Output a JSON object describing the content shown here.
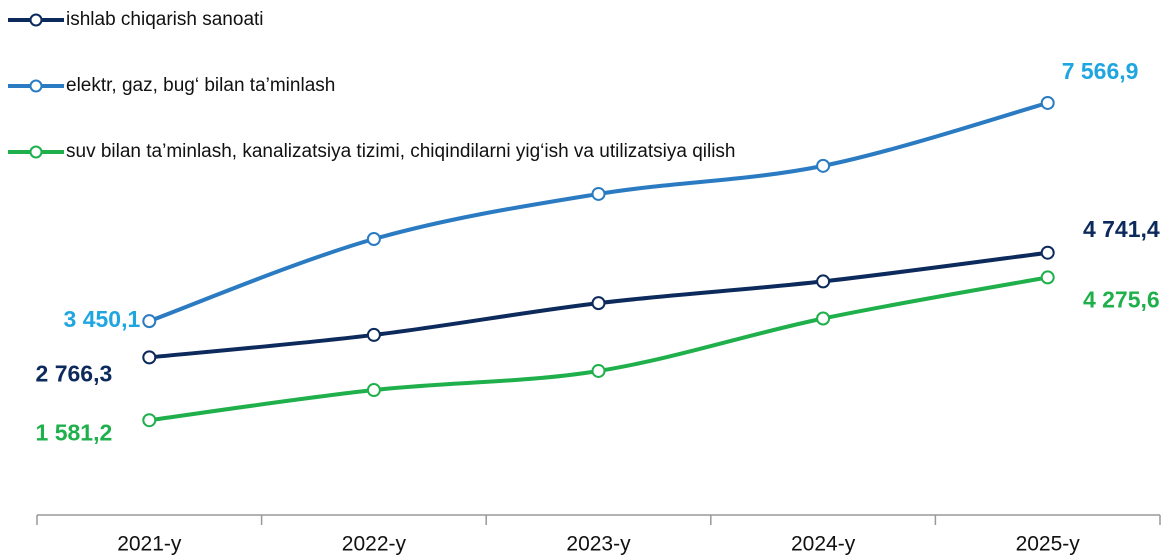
{
  "chart_data": {
    "type": "line",
    "categories": [
      "2021-y",
      "2022-y",
      "2023-y",
      "2024-y",
      "2025-y"
    ],
    "series": [
      {
        "name": "ishlab chiqarish sanoati",
        "color": "#0d2a5c",
        "label_color": "#0d2a5c",
        "values": [
          2766.3,
          3190,
          3790,
          4200,
          4741.4
        ],
        "value_labels": [
          "2 766,3",
          null,
          null,
          null,
          "4 741,4"
        ]
      },
      {
        "name": "elektr, gaz, bug‘ bilan ta’minlash",
        "color": "#2b7bc2",
        "label_color": "#1fa6e0",
        "values": [
          3450.1,
          5000,
          5850,
          6380,
          7566.9
        ],
        "value_labels": [
          "3 450,1",
          null,
          null,
          null,
          "7 566,9"
        ]
      },
      {
        "name": "suv bilan ta’minlash, kanalizatsiya tizimi, chiqindilarni yig‘ish va utilizatsiya qilish",
        "color": "#1fb04c",
        "label_color": "#1fb04c",
        "values": [
          1581.2,
          2150,
          2510,
          3500,
          4275.6
        ],
        "value_labels": [
          "1 581,2",
          null,
          null,
          null,
          "4 275,6"
        ]
      }
    ],
    "ylim": [
      0,
      9000
    ]
  }
}
